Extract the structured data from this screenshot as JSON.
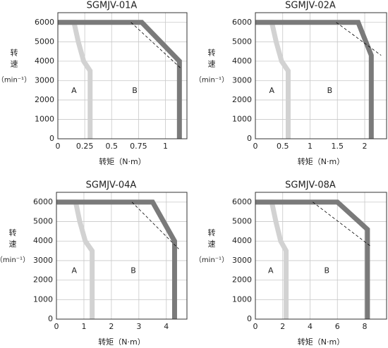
{
  "chart_data": [
    {
      "type": "line",
      "title": "SGMJV-01A",
      "ylabel": [
        "转",
        "速"
      ],
      "yunit": "（min⁻¹）",
      "xlabel": "转矩（N·m）",
      "xlim": [
        0,
        1.2
      ],
      "xticks": [
        0,
        0.25,
        0.5,
        0.75,
        1
      ],
      "ylim": [
        0,
        6500
      ],
      "yticks": [
        0,
        1000,
        2000,
        3000,
        4000,
        5000,
        6000
      ],
      "grid": true,
      "regions": [
        "A",
        "B"
      ],
      "series": [
        {
          "color": "#d2d2d2",
          "x": [
            0,
            0.15,
            0.19,
            0.24,
            0.3,
            0.3
          ],
          "values": [
            6000,
            6000,
            5000,
            4000,
            3500,
            0
          ]
        },
        {
          "color": "#7a7a7a",
          "x": [
            0,
            0.78,
            1.13,
            1.13
          ],
          "values": [
            6000,
            6000,
            4000,
            0
          ]
        },
        {
          "color": "#000000",
          "dash": true,
          "x": [
            0.68,
            1.15
          ],
          "values": [
            6000,
            3600
          ]
        }
      ]
    },
    {
      "type": "line",
      "title": "SGMJV-02A",
      "ylabel": [
        "转",
        "速"
      ],
      "yunit": "（min⁻¹）",
      "xlabel": "转矩（N·m）",
      "xlim": [
        0,
        2.4
      ],
      "xticks": [
        0,
        0.5,
        1,
        1.5,
        2
      ],
      "ylim": [
        0,
        6500
      ],
      "yticks": [
        0,
        1000,
        2000,
        3000,
        4000,
        5000,
        6000
      ],
      "grid": true,
      "regions": [
        "A",
        "B"
      ],
      "series": [
        {
          "color": "#d2d2d2",
          "x": [
            0,
            0.3,
            0.38,
            0.48,
            0.6,
            0.6
          ],
          "values": [
            6000,
            6000,
            5000,
            4000,
            3500,
            0
          ]
        },
        {
          "color": "#7a7a7a",
          "x": [
            0,
            1.88,
            2.12,
            2.12
          ],
          "values": [
            6000,
            6000,
            4300,
            0
          ]
        },
        {
          "color": "#000000",
          "dash": true,
          "x": [
            1.48,
            2.3
          ],
          "values": [
            6000,
            4300
          ]
        }
      ]
    },
    {
      "type": "line",
      "title": "SGMJV-04A",
      "ylabel": [
        "转",
        "速"
      ],
      "yunit": "（min⁻¹）",
      "xlabel": "转矩（N·m）",
      "xlim": [
        0,
        4.75
      ],
      "xticks": [
        0,
        1,
        2,
        3,
        4
      ],
      "ylim": [
        0,
        6500
      ],
      "yticks": [
        0,
        1000,
        2000,
        3000,
        4000,
        5000,
        6000
      ],
      "grid": true,
      "regions": [
        "A",
        "B"
      ],
      "series": [
        {
          "color": "#d2d2d2",
          "x": [
            0,
            0.7,
            0.85,
            1.05,
            1.3,
            1.3
          ],
          "values": [
            6000,
            6000,
            5000,
            4000,
            3500,
            0
          ]
        },
        {
          "color": "#7a7a7a",
          "x": [
            0,
            3.5,
            4.3,
            4.3
          ],
          "values": [
            6000,
            6000,
            4000,
            0
          ]
        },
        {
          "color": "#000000",
          "dash": true,
          "x": [
            2.75,
            4.45
          ],
          "values": [
            6000,
            3600
          ]
        }
      ]
    },
    {
      "type": "line",
      "title": "SGMJV-08A",
      "ylabel": [
        "转",
        "速"
      ],
      "yunit": "（min⁻¹）",
      "xlabel": "转矩（N·m）",
      "xlim": [
        0,
        9.6
      ],
      "xticks": [
        0,
        2,
        4,
        6,
        8
      ],
      "ylim": [
        0,
        6500
      ],
      "yticks": [
        0,
        1000,
        2000,
        3000,
        4000,
        5000,
        6000
      ],
      "grid": true,
      "regions": [
        "A",
        "B"
      ],
      "series": [
        {
          "color": "#d2d2d2",
          "x": [
            0,
            1.2,
            1.5,
            1.85,
            2.25,
            2.25
          ],
          "values": [
            6000,
            6000,
            5000,
            4000,
            3500,
            0
          ]
        },
        {
          "color": "#7a7a7a",
          "x": [
            0,
            6,
            8.2,
            8.2
          ],
          "values": [
            6000,
            6000,
            4600,
            0
          ]
        },
        {
          "color": "#000000",
          "dash": true,
          "x": [
            4.2,
            8.5
          ],
          "values": [
            6000,
            3700
          ]
        }
      ]
    }
  ]
}
